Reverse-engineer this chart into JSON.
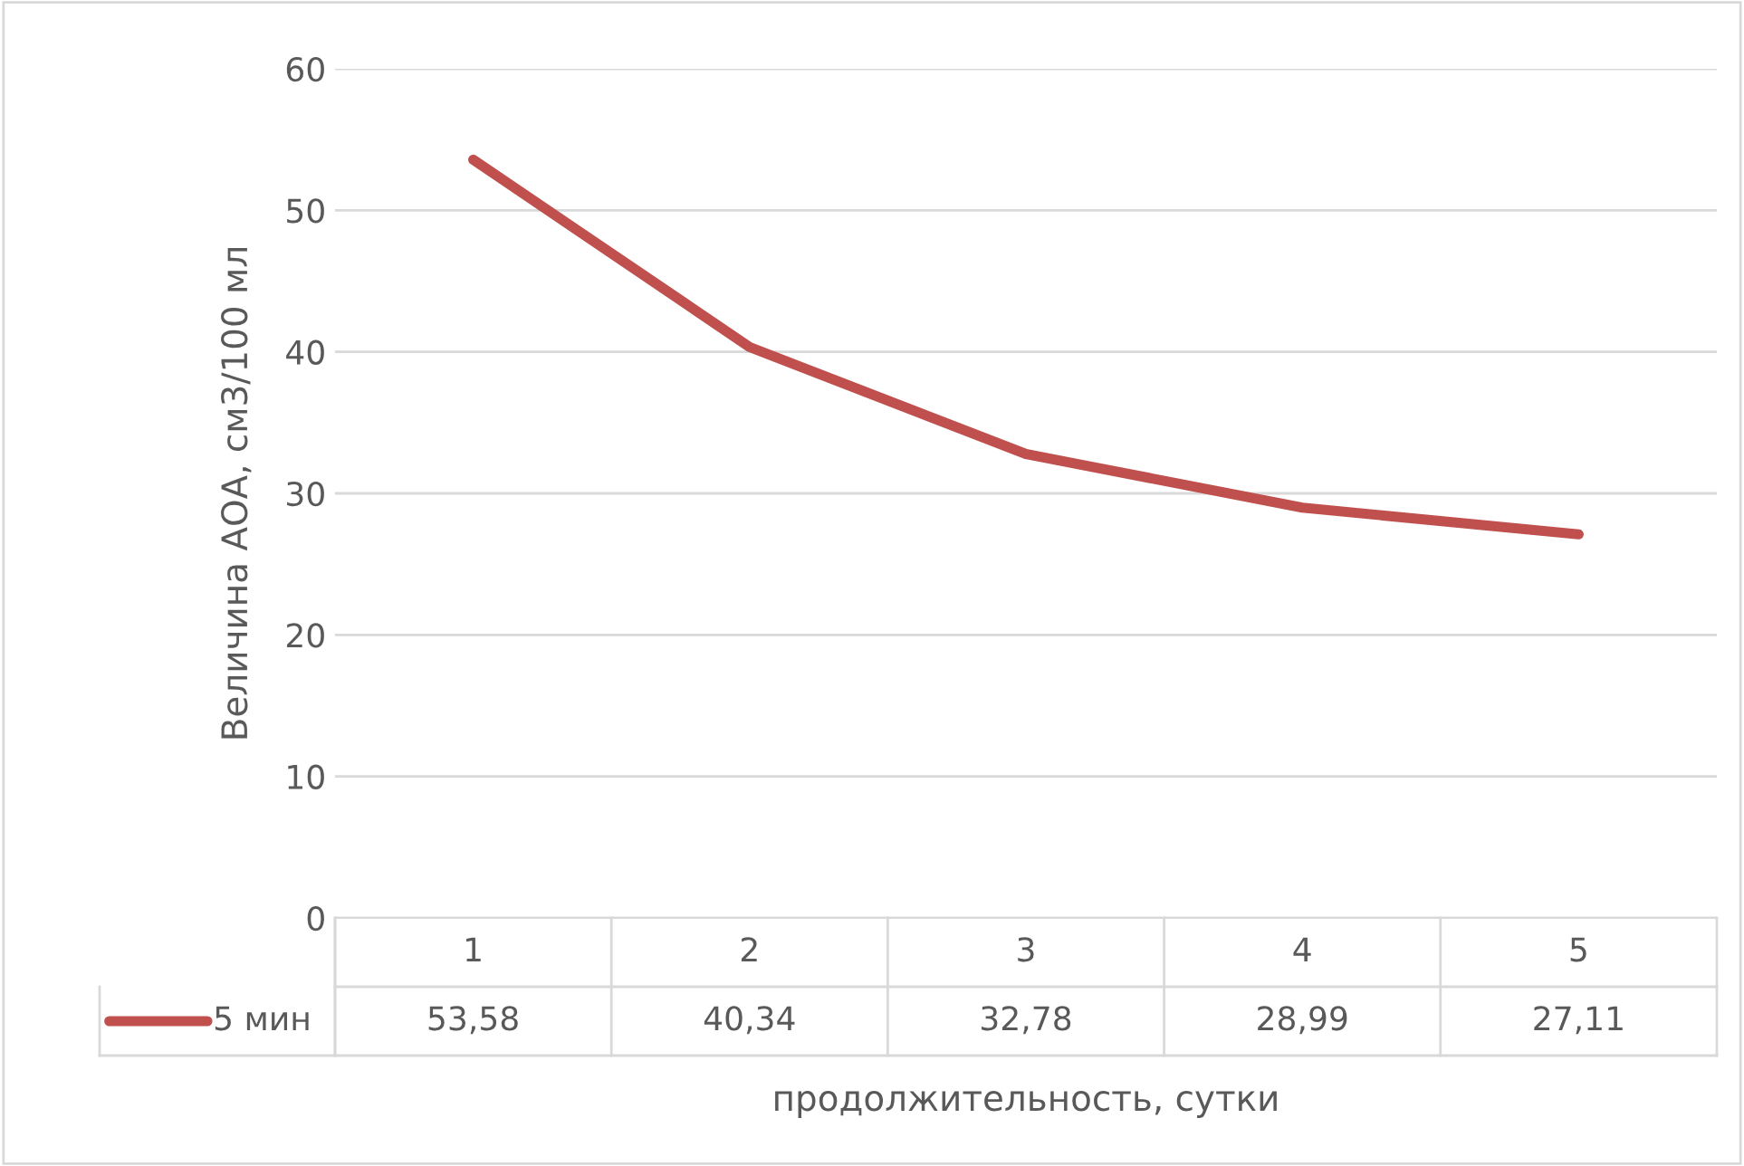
{
  "chart_data": {
    "type": "line",
    "xlabel": "продолжительность, сутки",
    "ylabel": "Величина АОА, см3/100 мл",
    "categories": [
      "1",
      "2",
      "3",
      "4",
      "5"
    ],
    "series": [
      {
        "name": "5 мин",
        "color": "#c0504d",
        "values": [
          53.58,
          40.34,
          32.78,
          28.99,
          27.11
        ],
        "value_labels": [
          "53,58",
          "40,34",
          "32,78",
          "28,99",
          "27,11"
        ]
      }
    ],
    "ylim": [
      0,
      60
    ],
    "yticks": [
      0,
      10,
      20,
      30,
      40,
      50,
      60
    ],
    "grid": "y",
    "legend": "bottom",
    "marker": "none",
    "line_style": "solid"
  }
}
